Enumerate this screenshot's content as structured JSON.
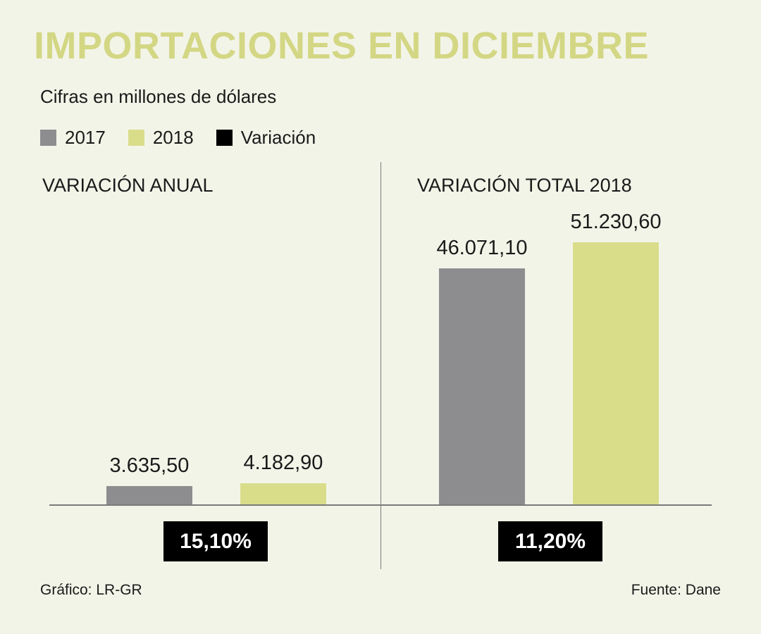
{
  "title": "IMPORTACIONES EN DICIEMBRE",
  "subtitle": "Cifras en millones de dólares",
  "legend": [
    {
      "label": "2017",
      "color": "#8d8d90"
    },
    {
      "label": "2018",
      "color": "#d9dd8a"
    },
    {
      "label": "Variación",
      "color": "#000000"
    }
  ],
  "colors": {
    "background": "#f3f4e8",
    "title": "#d3d784",
    "text": "#1a1a1a",
    "line": "#7a7a7a",
    "badge_bg": "#000000",
    "badge_text": "#ffffff"
  },
  "footer": {
    "credit": "Gráfico: LR-GR",
    "source": "Fuente: Dane"
  },
  "chart_data": [
    {
      "type": "bar",
      "title": "VARIACIÓN ANUAL",
      "categories": [
        "2017",
        "2018"
      ],
      "values": [
        3635.5,
        4182.9
      ],
      "value_labels": [
        "3.635,50",
        "4.182,90"
      ],
      "variation": "15,10%",
      "xlabel": "",
      "ylabel": "",
      "ylim": [
        0,
        51230.6
      ],
      "grid": false,
      "legend_position": "top-left",
      "shared_y_scale": true
    },
    {
      "type": "bar",
      "title": "VARIACIÓN TOTAL 2018",
      "categories": [
        "2017",
        "2018"
      ],
      "values": [
        46071.1,
        51230.6
      ],
      "value_labels": [
        "46.071,10",
        "51.230,60"
      ],
      "variation": "11,20%",
      "xlabel": "",
      "ylabel": "",
      "ylim": [
        0,
        51230.6
      ],
      "grid": false,
      "legend_position": "top-left",
      "shared_y_scale": true
    }
  ]
}
